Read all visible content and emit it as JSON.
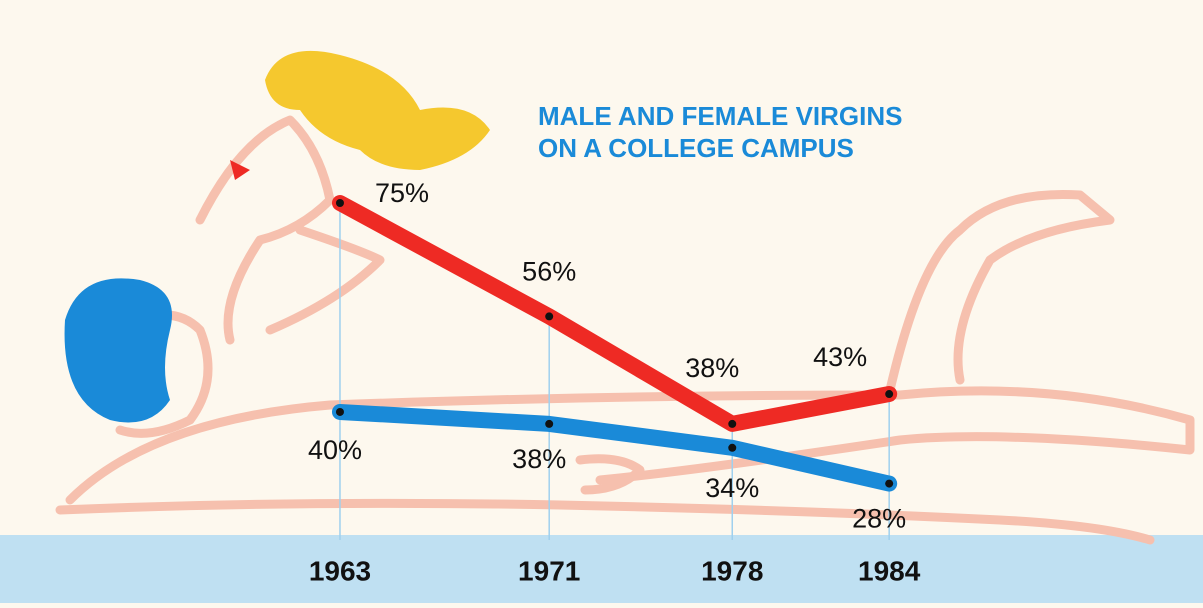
{
  "chart_data": {
    "type": "line",
    "title": [
      "MALE AND FEMALE VIRGINS",
      "ON A COLLEGE CAMPUS"
    ],
    "x": [
      1963,
      1971,
      1978,
      1984
    ],
    "xlim": [
      1950,
      1996
    ],
    "xticks": [
      1963,
      1971,
      1978,
      1984
    ],
    "ylim": [
      8,
      109
    ],
    "series": [
      {
        "color": "#ee2a24",
        "values": [
          75,
          56,
          38,
          43
        ],
        "value_labels": [
          "75%",
          "56%",
          "38%",
          "43%"
        ]
      },
      {
        "color": "#1a8ad8",
        "values": [
          40,
          38,
          34,
          28
        ],
        "value_labels": [
          "40%",
          "38%",
          "34%",
          "28%"
        ]
      }
    ]
  }
}
